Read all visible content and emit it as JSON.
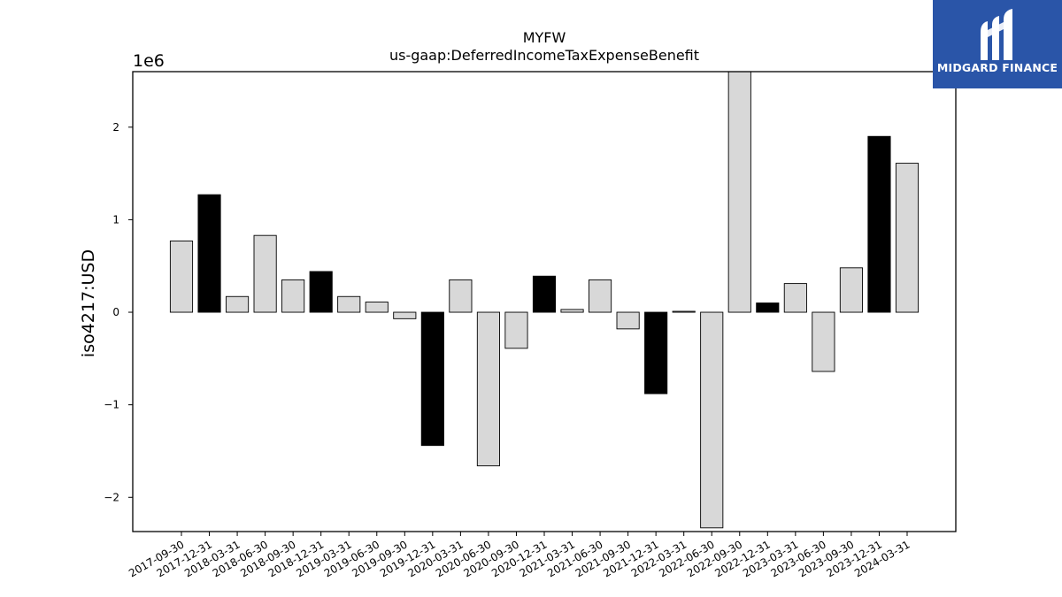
{
  "chart_data": {
    "type": "bar",
    "title": "MYFW",
    "subtitle": "us-gaap:DeferredIncomeTaxExpenseBenefit",
    "ylabel": "iso4217:USD",
    "xlabel": "",
    "y_multiplier_label": "1e6",
    "ylim": [
      -2.37,
      2.6
    ],
    "y_ticks": [
      -2,
      -1,
      0,
      1,
      2
    ],
    "y_tick_labels": [
      "−2",
      "−1",
      "0",
      "1",
      "2"
    ],
    "grid": false,
    "categories": [
      "2017-09-30",
      "2017-12-31",
      "2018-03-31",
      "2018-06-30",
      "2018-09-30",
      "2018-12-31",
      "2019-03-31",
      "2019-06-30",
      "2019-09-30",
      "2019-12-31",
      "2020-03-31",
      "2020-06-30",
      "2020-09-30",
      "2020-12-31",
      "2021-03-31",
      "2021-06-30",
      "2021-09-30",
      "2021-12-31",
      "2022-03-31",
      "2022-06-30",
      "2022-09-30",
      "2022-12-31",
      "2023-03-31",
      "2023-06-30",
      "2023-09-30",
      "2023-12-31",
      "2024-03-31"
    ],
    "values": [
      0.77,
      1.27,
      0.17,
      0.83,
      0.35,
      0.44,
      0.17,
      0.11,
      -0.07,
      -1.44,
      0.35,
      -1.66,
      -0.39,
      0.39,
      0.03,
      0.35,
      -0.18,
      -0.88,
      0.01,
      -2.33,
      2.6,
      0.1,
      0.31,
      -0.64,
      0.48,
      1.9,
      1.61
    ],
    "fiscal_year_end": [
      false,
      true,
      false,
      false,
      false,
      true,
      false,
      false,
      false,
      true,
      false,
      false,
      false,
      true,
      false,
      false,
      false,
      true,
      false,
      false,
      false,
      true,
      false,
      false,
      false,
      true,
      false
    ],
    "colors": {
      "quarter": "#d8d8d8",
      "year_end": "#000000",
      "edge": "#000000"
    }
  },
  "logo": {
    "text": "MIDGARD FINANCE",
    "background": "#2a55a8",
    "icon": "midgard-m-logo-icon"
  }
}
